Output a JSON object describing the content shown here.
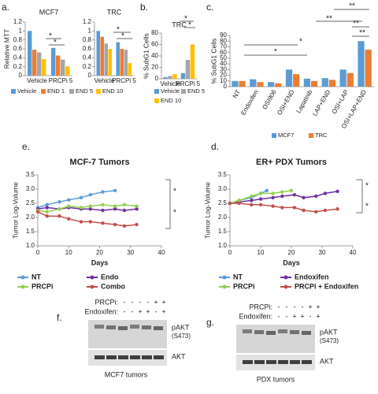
{
  "chart_data": [
    {
      "type": "bar",
      "panel": "a.",
      "title": "MCF7",
      "y_label": "Relative MTT",
      "categories": [
        "Vehicle",
        "PRCPi 5"
      ],
      "series": [
        {
          "name": "Vehicle",
          "color": "#5b9bd5",
          "values": [
            1.0,
            0.62
          ]
        },
        {
          "name": "END 1",
          "color": "#ed7d31",
          "values": [
            0.58,
            0.45
          ]
        },
        {
          "name": "END 5",
          "color": "#a5a5a5",
          "values": [
            0.52,
            0.36
          ]
        },
        {
          "name": "END 10",
          "color": "#ffc000",
          "values": [
            0.37,
            0.21
          ]
        }
      ],
      "ylim": [
        0,
        1.2
      ],
      "yticks": [
        0,
        0.2,
        0.4,
        0.6,
        0.8,
        1,
        1.2
      ],
      "annotations": [
        "*",
        "*"
      ]
    },
    {
      "type": "bar",
      "title": "TRC",
      "categories": [
        "Vehicle",
        "PRCPi 5"
      ],
      "series": [
        {
          "color": "#5b9bd5",
          "values": [
            1.0,
            0.75
          ]
        },
        {
          "color": "#ed7d31",
          "values": [
            0.87,
            0.6
          ]
        },
        {
          "color": "#a5a5a5",
          "values": [
            0.72,
            0.58
          ]
        },
        {
          "color": "#ffc000",
          "values": [
            0.6,
            0.28
          ]
        }
      ],
      "ylim": [
        0,
        1.2
      ],
      "yticks": [
        0,
        0.2,
        0.4,
        0.6,
        0.8,
        1,
        1.2
      ],
      "annotations": [
        "*",
        "*"
      ]
    },
    {
      "type": "bar",
      "panel": "b.",
      "title": "TRC",
      "y_label": "% SubG1 Cells",
      "categories": [
        "Vehicle",
        "PRCPi 5"
      ],
      "series": [
        {
          "name": "Vehicle",
          "color": "#5b9bd5",
          "values": [
            3,
            10
          ]
        },
        {
          "name": "END 5",
          "color": "#a5a5a5",
          "values": [
            5,
            33
          ]
        },
        {
          "name": "END 10",
          "color": "#ffc000",
          "values": [
            8,
            60
          ]
        }
      ],
      "ylim": [
        0,
        80
      ],
      "yticks": [
        0,
        20,
        40,
        60,
        80
      ],
      "annotations": [
        "*",
        "*"
      ]
    },
    {
      "type": "bar",
      "panel": "c.",
      "y_label": "% SubG1 Cells",
      "categories": [
        "NT",
        "Endoxifen",
        "OSI906",
        "OSI+END",
        "Lapatinib",
        "LAP+END",
        "OSI+LAP",
        "OSI+LAP+END"
      ],
      "series": [
        {
          "name": "MCF7",
          "color": "#5b9bd5",
          "values": [
            10,
            13,
            8,
            30,
            14,
            15,
            30,
            80
          ]
        },
        {
          "name": "TRC",
          "color": "#ed7d31",
          "values": [
            10,
            8,
            6,
            22,
            10,
            12,
            24,
            65
          ]
        }
      ],
      "ylim": [
        0,
        90
      ],
      "yticks": [
        0,
        10,
        20,
        30,
        40,
        50,
        60,
        70,
        80,
        90
      ],
      "annotations": [
        "*",
        "*",
        "**",
        "**",
        "**",
        "**"
      ]
    },
    {
      "type": "line",
      "panel": "e.",
      "title": "MCF-7 Tumors",
      "x_label": "Days",
      "y_label": "Tumor Log-Volume",
      "series": [
        {
          "name": "NT",
          "color": "#5b9bd5",
          "x": [
            0,
            3,
            7,
            10,
            14,
            17,
            21,
            25
          ],
          "values": [
            2.35,
            2.45,
            2.55,
            2.62,
            2.7,
            2.8,
            2.9,
            2.95
          ]
        },
        {
          "name": "Endo",
          "color": "#7030a0",
          "x": [
            0,
            3,
            7,
            10,
            14,
            17,
            21,
            25,
            28,
            32
          ],
          "values": [
            2.3,
            2.35,
            2.3,
            2.35,
            2.3,
            2.3,
            2.25,
            2.3,
            2.25,
            2.3
          ]
        },
        {
          "name": "PRCPi",
          "color": "#92d050",
          "x": [
            0,
            3,
            7,
            10,
            14,
            17,
            21,
            25,
            28,
            32
          ],
          "values": [
            2.25,
            2.2,
            2.3,
            2.4,
            2.35,
            2.4,
            2.45,
            2.4,
            2.45,
            2.4
          ]
        },
        {
          "name": "Combo",
          "color": "#c0504d",
          "x": [
            0,
            3,
            7,
            10,
            14,
            17,
            21,
            25,
            28,
            32
          ],
          "values": [
            2.2,
            2.05,
            2.05,
            1.95,
            1.85,
            1.85,
            1.8,
            1.75,
            1.7,
            1.75
          ]
        }
      ],
      "xlim": [
        0,
        40
      ],
      "xticks": [
        0,
        10,
        20,
        30,
        40
      ],
      "ylim": [
        1,
        3.5
      ],
      "yticks": [
        {
          "value": 1,
          "label": "1.0"
        },
        {
          "value": 1.5,
          "label": "1.5"
        },
        {
          "value": 2,
          "label": "2.0"
        },
        {
          "value": 2.5,
          "label": "2.5"
        },
        {
          "value": 3,
          "label": "3.0"
        },
        {
          "value": 3.5,
          "label": "3.5"
        }
      ],
      "annotations": [
        "*",
        "*"
      ]
    },
    {
      "type": "line",
      "panel": "d.",
      "title": "ER+ PDX Tumors",
      "x_label": "Days",
      "y_label": "Tumor Log-Volume",
      "series": [
        {
          "name": "NT",
          "color": "#5b9bd5",
          "x": [
            0,
            3,
            7,
            10,
            12
          ],
          "values": [
            2.5,
            2.6,
            2.7,
            2.85,
            2.95
          ]
        },
        {
          "name": "Endoxifen",
          "color": "#7030a0",
          "x": [
            0,
            3,
            7,
            10,
            14,
            17,
            21,
            24,
            28,
            31,
            35
          ],
          "values": [
            2.5,
            2.55,
            2.6,
            2.65,
            2.7,
            2.75,
            2.8,
            2.7,
            2.75,
            2.85,
            2.92
          ]
        },
        {
          "name": "PRCPi",
          "color": "#92d050",
          "x": [
            0,
            3,
            7,
            10,
            14,
            17,
            20
          ],
          "values": [
            2.5,
            2.6,
            2.75,
            2.85,
            2.85,
            2.9,
            2.95
          ]
        },
        {
          "name": "PRCPi + Endoxifen",
          "color": "#c0504d",
          "x": [
            0,
            3,
            7,
            10,
            14,
            17,
            21,
            24,
            28,
            31,
            35
          ],
          "values": [
            2.5,
            2.5,
            2.45,
            2.45,
            2.4,
            2.35,
            2.35,
            2.25,
            2.2,
            2.25,
            2.3
          ]
        }
      ],
      "xlim": [
        0,
        40
      ],
      "xticks": [
        0,
        10,
        20,
        30,
        40
      ],
      "ylim": [
        1,
        3.5
      ],
      "yticks": [
        {
          "value": 1,
          "label": "1.0"
        },
        {
          "value": 1.5,
          "label": "1.5"
        },
        {
          "value": 2,
          "label": "2.0"
        },
        {
          "value": 2.5,
          "label": "2.5"
        },
        {
          "value": 3,
          "label": "3.0"
        },
        {
          "value": 3.5,
          "label": "3.5"
        }
      ],
      "annotations": [
        "*",
        "*"
      ]
    }
  ],
  "blots": [
    {
      "panel": "f.",
      "rows": [
        {
          "label": "PRCPi:",
          "signs": [
            "-",
            "-",
            "-",
            "-",
            "+",
            "+"
          ]
        },
        {
          "label": "Endoxifen:",
          "signs": [
            "-",
            "-",
            "+",
            "+",
            "-",
            "+"
          ]
        }
      ],
      "band_top": "pAKT",
      "band_top_site": "(S473)",
      "band_bottom": "AKT",
      "caption": "MCF7 tumors"
    },
    {
      "panel": "g.",
      "rows": [
        {
          "label": "PRCPi:",
          "signs": [
            "-",
            "-",
            "-",
            "-",
            "+",
            "+"
          ]
        },
        {
          "label": "Endoxifen:",
          "signs": [
            "-",
            "-",
            "+",
            "+",
            "-",
            "+"
          ]
        }
      ],
      "band_top": "pAKT",
      "band_top_site": "(S473)",
      "band_bottom": "AKT",
      "caption": "PDX tumors"
    }
  ]
}
